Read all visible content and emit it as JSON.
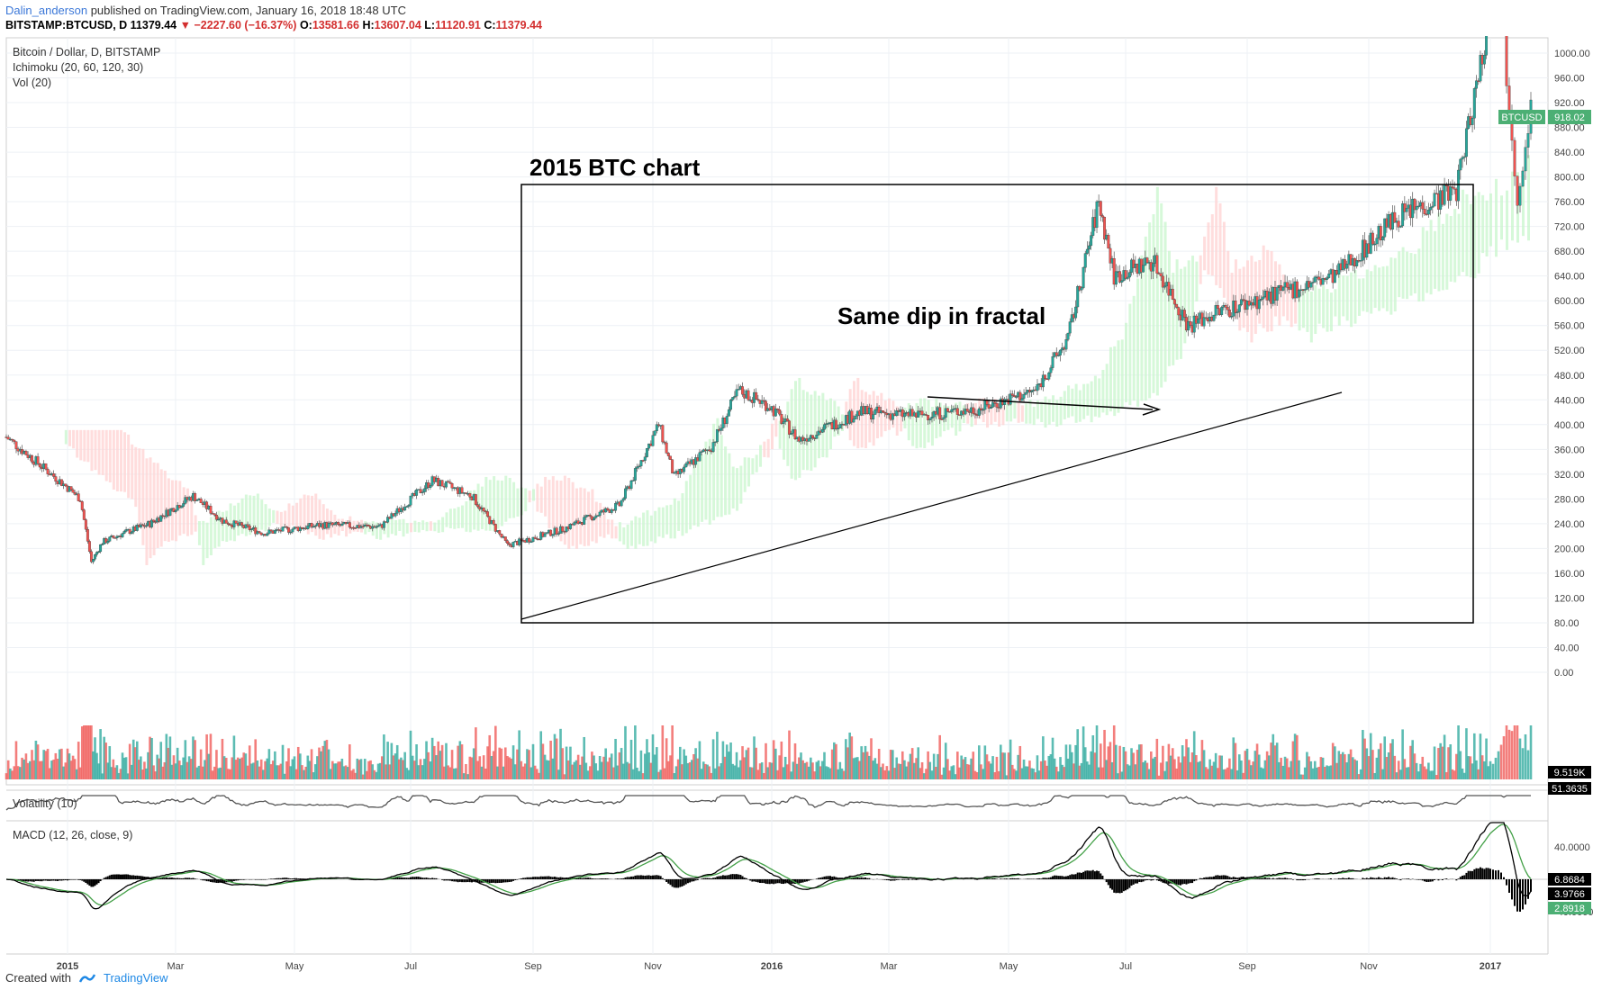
{
  "header": {
    "author": "Dalin_anderson",
    "published": "published on TradingView.com, January 16, 2018 18:48 UTC"
  },
  "quote": {
    "symbol": "BITSTAMP:BTCUSD, D",
    "last": "11379.44",
    "change": "−2227.60 (−16.37%)",
    "o_label": "O:",
    "o": "13581.66",
    "h_label": "H:",
    "h": "13607.04",
    "l_label": "L:",
    "l": "11120.91",
    "c_label": "C:",
    "c": "11379.44"
  },
  "legend": {
    "title": "Bitcoin / Dollar, D, BITSTAMP",
    "ichimoku": "Ichimoku (20, 60, 120, 30)",
    "vol": "Vol (20)",
    "volatility": "Volatility (10)",
    "macd": "MACD (12, 26, close, 9)"
  },
  "annotations": {
    "box_title": "2015 BTC chart",
    "dip_label": "Same dip in fractal"
  },
  "badges": {
    "price_symbol": "BTCUSD",
    "price_value": "918.02",
    "vol_value": "9.519K",
    "volatility_value": "51.3635",
    "macd_value": "6.8684",
    "signal_value": "3.9766",
    "hist_value": "2.8918"
  },
  "price_axis_labels": [
    "1000.00",
    "960.00",
    "920.00",
    "880.00",
    "840.00",
    "800.00",
    "760.00",
    "720.00",
    "680.00",
    "640.00",
    "600.00",
    "560.00",
    "520.00",
    "480.00",
    "440.00",
    "400.00",
    "360.00",
    "320.00",
    "280.00",
    "240.00",
    "200.00",
    "160.00",
    "120.00",
    "80.00",
    "40.00",
    "0.00"
  ],
  "macd_axis_labels": [
    "40.0000",
    "-40.0000"
  ],
  "time_axis_labels": [
    "2015",
    "Mar",
    "May",
    "Jul",
    "Sep",
    "Nov",
    "2016",
    "Mar",
    "May",
    "Jul",
    "Sep",
    "Nov",
    "2017"
  ],
  "footer": {
    "created_with": "Created with",
    "brand": "TradingView"
  },
  "colors": {
    "up": "#26a69a",
    "down": "#ef5350",
    "cloud_bull": "#c8f5cc",
    "cloud_bear": "#ffd1d1",
    "accent": "#3c78d8"
  },
  "chart_data": {
    "type": "candlestick",
    "title": "Bitcoin / Dollar, D, BITSTAMP",
    "x_range": [
      "2015-01",
      "2017-01"
    ],
    "ylim": [
      0,
      1040
    ],
    "price_path": [
      {
        "date": "2014-12-01",
        "price": 380
      },
      {
        "date": "2014-12-20",
        "price": 330
      },
      {
        "date": "2015-01-08",
        "price": 280
      },
      {
        "date": "2015-01-14",
        "price": 178
      },
      {
        "date": "2015-01-20",
        "price": 210
      },
      {
        "date": "2015-02-01",
        "price": 225
      },
      {
        "date": "2015-02-15",
        "price": 240
      },
      {
        "date": "2015-03-10",
        "price": 285
      },
      {
        "date": "2015-03-25",
        "price": 245
      },
      {
        "date": "2015-04-15",
        "price": 225
      },
      {
        "date": "2015-05-15",
        "price": 238
      },
      {
        "date": "2015-06-15",
        "price": 235
      },
      {
        "date": "2015-07-12",
        "price": 310
      },
      {
        "date": "2015-08-01",
        "price": 285
      },
      {
        "date": "2015-08-19",
        "price": 205
      },
      {
        "date": "2015-09-15",
        "price": 230
      },
      {
        "date": "2015-10-15",
        "price": 270
      },
      {
        "date": "2015-11-04",
        "price": 400
      },
      {
        "date": "2015-11-12",
        "price": 315
      },
      {
        "date": "2015-12-01",
        "price": 365
      },
      {
        "date": "2015-12-15",
        "price": 455
      },
      {
        "date": "2015-12-31",
        "price": 430
      },
      {
        "date": "2016-01-15",
        "price": 375
      },
      {
        "date": "2016-02-15",
        "price": 420
      },
      {
        "date": "2016-03-15",
        "price": 415
      },
      {
        "date": "2016-04-15",
        "price": 425
      },
      {
        "date": "2016-05-15",
        "price": 455
      },
      {
        "date": "2016-06-01",
        "price": 540
      },
      {
        "date": "2016-06-17",
        "price": 760
      },
      {
        "date": "2016-06-25",
        "price": 640
      },
      {
        "date": "2016-07-15",
        "price": 665
      },
      {
        "date": "2016-08-02",
        "price": 560
      },
      {
        "date": "2016-08-15",
        "price": 580
      },
      {
        "date": "2016-09-15",
        "price": 610
      },
      {
        "date": "2016-10-15",
        "price": 640
      },
      {
        "date": "2016-11-15",
        "price": 735
      },
      {
        "date": "2016-12-15",
        "price": 780
      },
      {
        "date": "2017-01-04",
        "price": 1120
      },
      {
        "date": "2017-01-11",
        "price": 770
      },
      {
        "date": "2017-01-16",
        "price": 918
      }
    ],
    "volume_series": "Vol (20)",
    "volatility_series": "Volatility (10)",
    "macd_series": "MACD (12, 26, close, 9)"
  }
}
